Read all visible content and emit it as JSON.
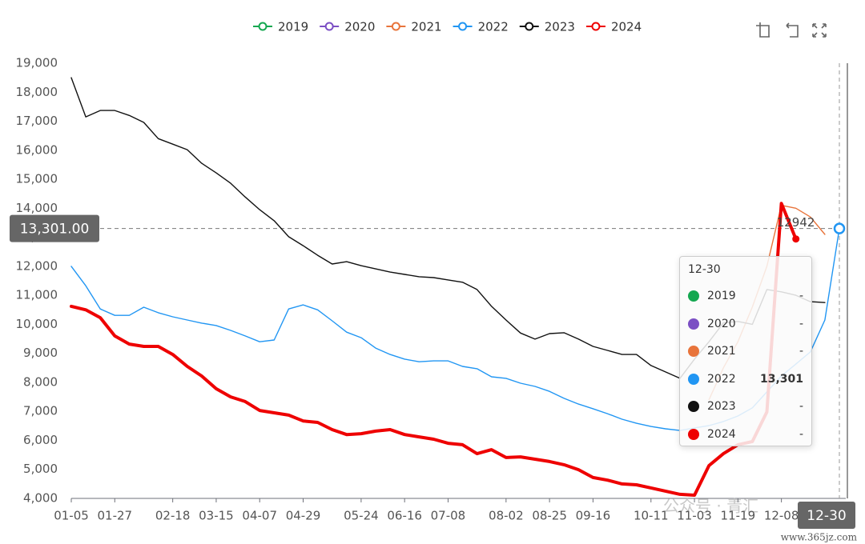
{
  "chart_data": {
    "type": "line",
    "categories": [
      "01-05",
      null,
      null,
      "01-27",
      null,
      null,
      null,
      "02-18",
      null,
      null,
      "03-15",
      null,
      null,
      "04-07",
      null,
      null,
      "04-29",
      null,
      null,
      null,
      "05-24",
      null,
      null,
      "06-16",
      null,
      null,
      "07-08",
      null,
      null,
      null,
      "08-02",
      null,
      null,
      "08-25",
      null,
      null,
      "09-16",
      null,
      null,
      null,
      "10-11",
      null,
      null,
      "11-03",
      null,
      null,
      "11-19",
      null,
      null,
      "12-08",
      null,
      null,
      null,
      "12-30"
    ],
    "series": [
      {
        "name": "2019",
        "color": "#14a750",
        "values": [
          null,
          null,
          null,
          null,
          null,
          null,
          null,
          null,
          null,
          null,
          null,
          null,
          null,
          null,
          null,
          null,
          null,
          null,
          null,
          null,
          null,
          null,
          null,
          null,
          null,
          null,
          null,
          null,
          null,
          null,
          null,
          null,
          null,
          null,
          null,
          null,
          null,
          null,
          null,
          null,
          null,
          null,
          null,
          null,
          null,
          null,
          null,
          null,
          null,
          null,
          null,
          null,
          null,
          null
        ]
      },
      {
        "name": "2020",
        "color": "#7b4fc4",
        "values": [
          null,
          null,
          null,
          null,
          null,
          null,
          null,
          null,
          null,
          null,
          null,
          null,
          null,
          null,
          null,
          null,
          null,
          null,
          null,
          null,
          null,
          null,
          null,
          null,
          null,
          null,
          null,
          null,
          null,
          null,
          null,
          null,
          null,
          null,
          null,
          null,
          null,
          null,
          null,
          null,
          null,
          null,
          null,
          null,
          null,
          null,
          null,
          null,
          null,
          null,
          null,
          null,
          null,
          null
        ]
      },
      {
        "name": "2021",
        "color": "#e8743b",
        "values": [
          null,
          null,
          null,
          null,
          null,
          null,
          null,
          null,
          null,
          null,
          null,
          null,
          null,
          null,
          null,
          null,
          null,
          null,
          null,
          null,
          null,
          null,
          null,
          null,
          null,
          null,
          null,
          null,
          null,
          null,
          null,
          null,
          null,
          null,
          null,
          null,
          null,
          null,
          null,
          null,
          null,
          null,
          null,
          null,
          7400,
          8500,
          9400,
          10600,
          12000,
          14100,
          14000,
          13700,
          13100,
          null
        ]
      },
      {
        "name": "2022",
        "color": "#2196f3",
        "values": [
          12000,
          11330,
          10530,
          10310,
          10310,
          10590,
          10400,
          10260,
          10150,
          10040,
          9960,
          9790,
          9600,
          9400,
          9460,
          10530,
          10670,
          10500,
          10120,
          9730,
          9540,
          9180,
          8960,
          8800,
          8710,
          8740,
          8740,
          8550,
          8470,
          8190,
          8140,
          7970,
          7860,
          7690,
          7450,
          7250,
          7090,
          6920,
          6730,
          6590,
          6480,
          6400,
          6340,
          6430,
          6510,
          6650,
          6840,
          7120,
          7670,
          8220,
          8630,
          9050,
          10150,
          13301
        ]
      },
      {
        "name": "2023",
        "color": "#111111",
        "values": [
          18500,
          17150,
          17370,
          17370,
          17200,
          16960,
          16400,
          16210,
          16020,
          15550,
          15220,
          14860,
          14390,
          13950,
          13570,
          13020,
          12710,
          12380,
          12080,
          12160,
          12020,
          11910,
          11800,
          11720,
          11640,
          11610,
          11530,
          11450,
          11200,
          10620,
          10150,
          9700,
          9490,
          9680,
          9710,
          9490,
          9240,
          9100,
          8960,
          8960,
          8580,
          8360,
          8140,
          8800,
          9400,
          10050,
          10100,
          10000,
          11200,
          11120,
          11000,
          10780,
          10750,
          null
        ]
      },
      {
        "name": "2024",
        "color": "#ee0000",
        "width": 4,
        "label_last": true,
        "values": [
          10620,
          10500,
          10230,
          9600,
          9320,
          9240,
          9240,
          8960,
          8550,
          8220,
          7780,
          7500,
          7340,
          7030,
          6950,
          6870,
          6670,
          6620,
          6370,
          6200,
          6230,
          6320,
          6370,
          6200,
          6120,
          6040,
          5900,
          5850,
          5540,
          5680,
          5410,
          5430,
          5350,
          5270,
          5160,
          4990,
          4720,
          4630,
          4500,
          4470,
          4360,
          4250,
          4140,
          4110,
          5130,
          5540,
          5850,
          5960,
          6980,
          14170,
          12942,
          null,
          null,
          null
        ]
      }
    ],
    "ylim": [
      4000,
      19000
    ],
    "yticks": [
      {
        "value": 4000,
        "label": "4,000"
      },
      {
        "value": 5000,
        "label": "5,000"
      },
      {
        "value": 6000,
        "label": "6,000"
      },
      {
        "value": 7000,
        "label": "7,000"
      },
      {
        "value": 8000,
        "label": "8,000"
      },
      {
        "value": 9000,
        "label": "9,000"
      },
      {
        "value": 10000,
        "label": "10,000"
      },
      {
        "value": 11000,
        "label": "11,000"
      },
      {
        "value": 12000,
        "label": "12,000"
      },
      {
        "value": 13000,
        "label": "13,000"
      },
      {
        "value": 14000,
        "label": "14,000"
      },
      {
        "value": 15000,
        "label": "15,000"
      },
      {
        "value": 16000,
        "label": "16,000"
      },
      {
        "value": 17000,
        "label": "17,000"
      },
      {
        "value": 18000,
        "label": "18,000"
      },
      {
        "value": 19000,
        "label": "19,000"
      }
    ],
    "grid": false,
    "legend": "top",
    "crosshair": {
      "index": 53,
      "value": 13301,
      "label": "13,301.00"
    },
    "tooltip": {
      "values": [
        "-",
        "-",
        "-",
        "13,301",
        "-",
        "-"
      ]
    },
    "watermark": [
      "公众号 · 青汇",
      "www.365jz.com"
    ]
  }
}
